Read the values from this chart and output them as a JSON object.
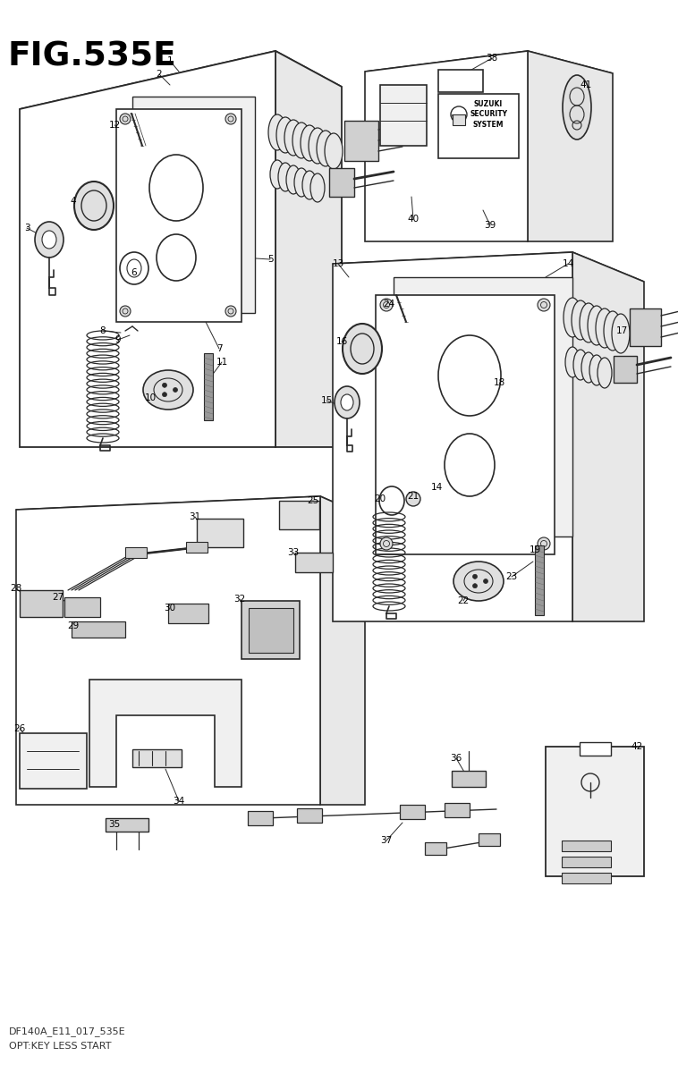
{
  "title": "FIG.535E",
  "subtitle1": "DF140A_E11_017_535E",
  "subtitle2": "OPT:KEY LESS START",
  "bg_color": "#ffffff",
  "watermark_color": "#b0d8d8",
  "fig_width": 7.58,
  "fig_height": 12.0,
  "dpi": 100,
  "line_color": "#2a2a2a",
  "light_gray": "#e8e8e8",
  "mid_gray": "#cccccc",
  "dark_gray": "#888888"
}
